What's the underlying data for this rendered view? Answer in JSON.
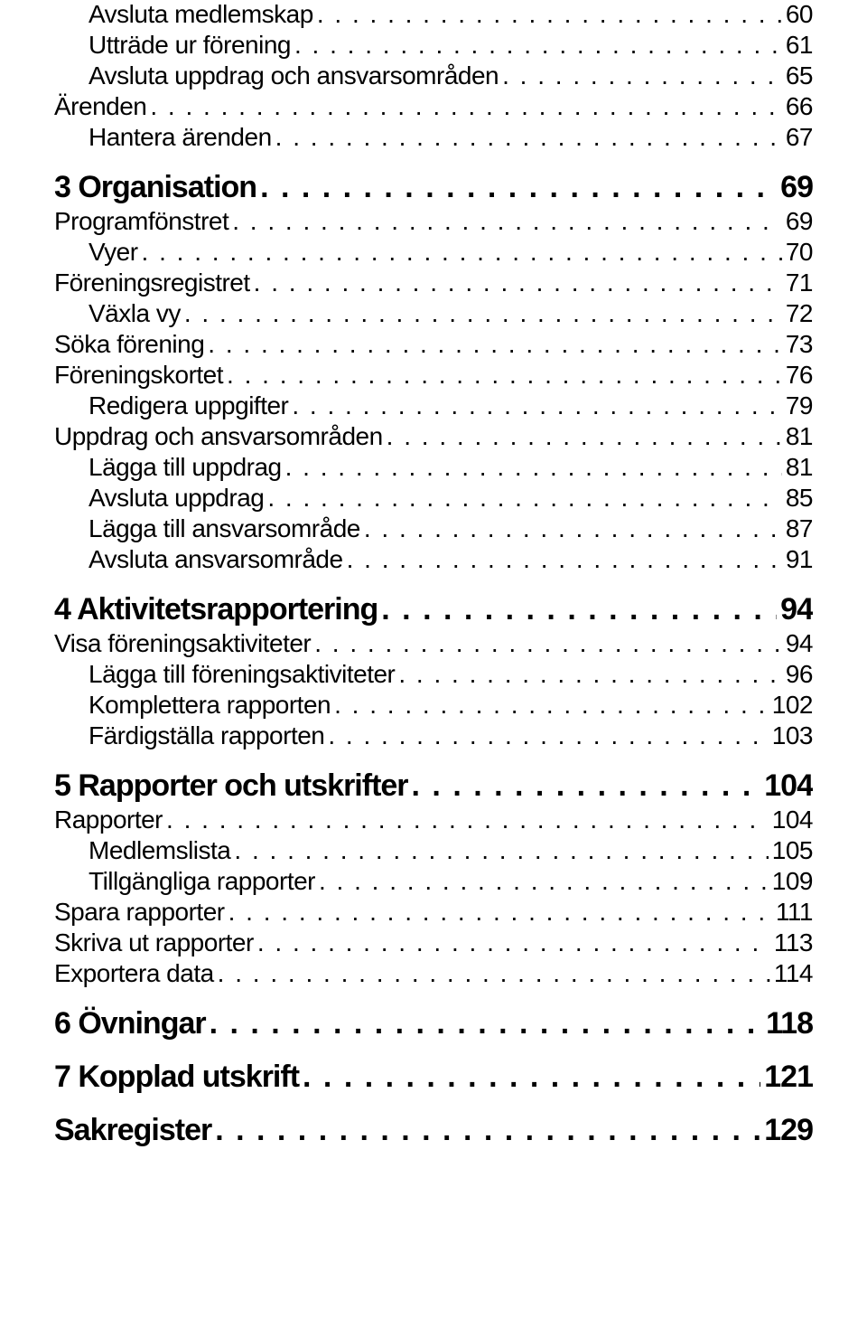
{
  "entries": [
    {
      "level": 2,
      "label": "Avsluta medlemskap",
      "page": "60"
    },
    {
      "level": 2,
      "label": "Utträde ur förening",
      "page": "61"
    },
    {
      "level": 2,
      "label": "Avsluta uppdrag och ansvarsområden",
      "page": "65"
    },
    {
      "level": 1,
      "label": "Ärenden",
      "page": "66"
    },
    {
      "level": 2,
      "label": "Hantera ärenden",
      "page": "67"
    },
    {
      "level": 0,
      "label": "3 Organisation",
      "page": "69"
    },
    {
      "level": 1,
      "label": "Programfönstret",
      "page": "69"
    },
    {
      "level": 2,
      "label": "Vyer",
      "page": "70"
    },
    {
      "level": 1,
      "label": "Föreningsregistret",
      "page": "71"
    },
    {
      "level": 2,
      "label": "Växla vy",
      "page": "72"
    },
    {
      "level": 1,
      "label": "Söka förening",
      "page": "73"
    },
    {
      "level": 1,
      "label": "Föreningskortet",
      "page": "76"
    },
    {
      "level": 2,
      "label": "Redigera uppgifter",
      "page": "79"
    },
    {
      "level": 1,
      "label": "Uppdrag och ansvarsområden",
      "page": "81"
    },
    {
      "level": 2,
      "label": "Lägga till uppdrag",
      "page": "81"
    },
    {
      "level": 2,
      "label": "Avsluta uppdrag",
      "page": "85"
    },
    {
      "level": 2,
      "label": "Lägga till ansvarsområde",
      "page": "87"
    },
    {
      "level": 2,
      "label": "Avsluta ansvarsområde",
      "page": "91"
    },
    {
      "level": 0,
      "label": "4 Aktivitetsrapportering",
      "page": "94"
    },
    {
      "level": 1,
      "label": "Visa föreningsaktiviteter",
      "page": "94"
    },
    {
      "level": 2,
      "label": "Lägga till föreningsaktiviteter",
      "page": "96"
    },
    {
      "level": 2,
      "label": "Komplettera rapporten",
      "page": "102"
    },
    {
      "level": 2,
      "label": "Färdigställa rapporten",
      "page": "103"
    },
    {
      "level": 0,
      "label": "5 Rapporter och utskrifter",
      "page": "104"
    },
    {
      "level": 1,
      "label": "Rapporter",
      "page": "104"
    },
    {
      "level": 2,
      "label": "Medlemslista",
      "page": "105"
    },
    {
      "level": 2,
      "label": "Tillgängliga rapporter",
      "page": "109"
    },
    {
      "level": 1,
      "label": "Spara rapporter",
      "page": "111"
    },
    {
      "level": 1,
      "label": "Skriva ut rapporter",
      "page": "113"
    },
    {
      "level": 1,
      "label": "Exportera data",
      "page": "114"
    },
    {
      "level": 0,
      "label": "6 Övningar",
      "page": "118"
    },
    {
      "level": 0,
      "label": "7 Kopplad utskrift",
      "page": "121"
    },
    {
      "level": 0,
      "label": "Sakregister",
      "page": "129"
    }
  ]
}
